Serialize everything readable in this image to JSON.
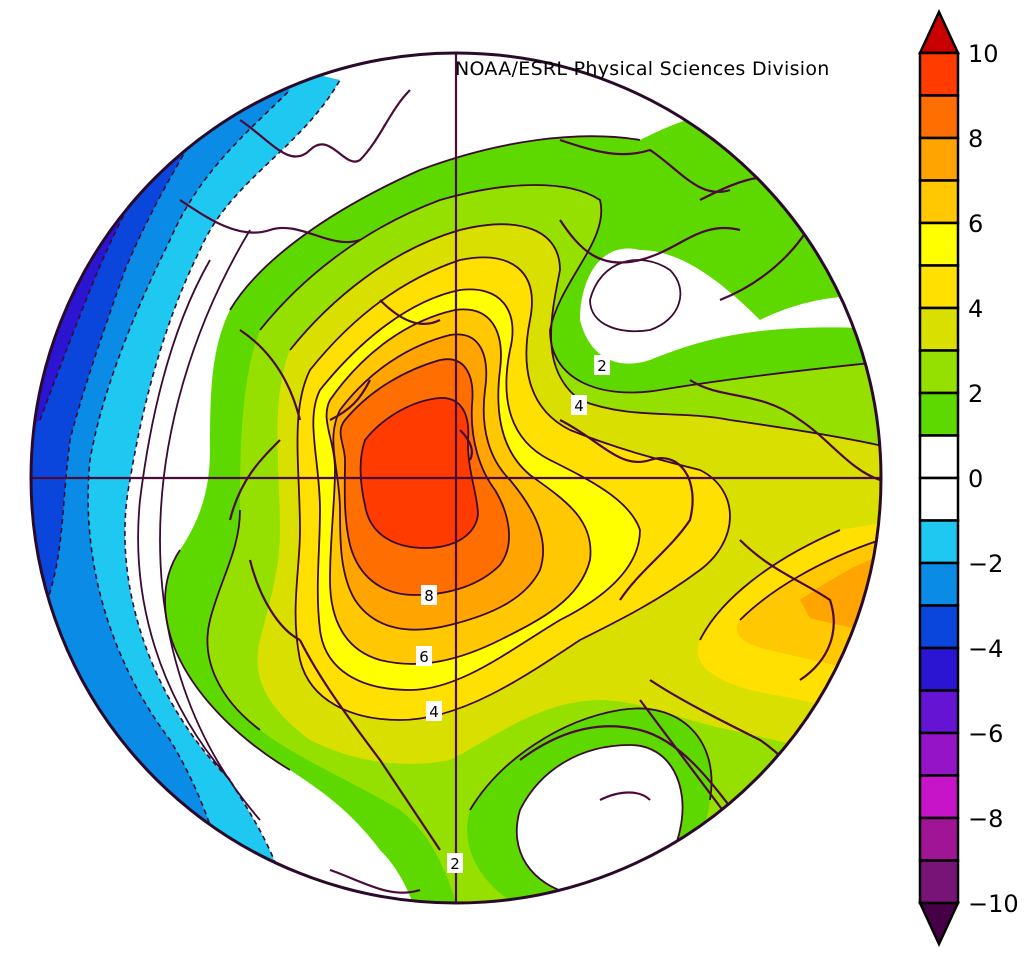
{
  "credit": "NOAA/ESRL Physical Sciences Division",
  "colorbar": {
    "min": -10,
    "max": 10,
    "step": 2,
    "tick_labels": [
      "10",
      "8",
      "6",
      "4",
      "2",
      "0",
      "−2",
      "−4",
      "−6",
      "−8",
      "−10"
    ],
    "bands_top_to_bottom": [
      "#ff3b00",
      "#ff6e00",
      "#ffa400",
      "#ffc800",
      "#ffff00",
      "#ffe000",
      "#d9e000",
      "#96e000",
      "#5ed900",
      "#ffffff",
      "#ffffff",
      "#1ec8f0",
      "#0a8ce6",
      "#0a46dc",
      "#2b14d2",
      "#6414d2",
      "#9614c8",
      "#c814c8",
      "#a01496",
      "#781478"
    ],
    "top_arrow_color": "#c80000",
    "bottom_arrow_color": "#460046"
  },
  "contour_labels": [
    "2",
    "4",
    "8",
    "6",
    "4",
    "2"
  ],
  "colors": {
    "coastline": "#4a0a3a",
    "contour": "#3a0a30",
    "graticule": "#4a0a3a"
  }
}
